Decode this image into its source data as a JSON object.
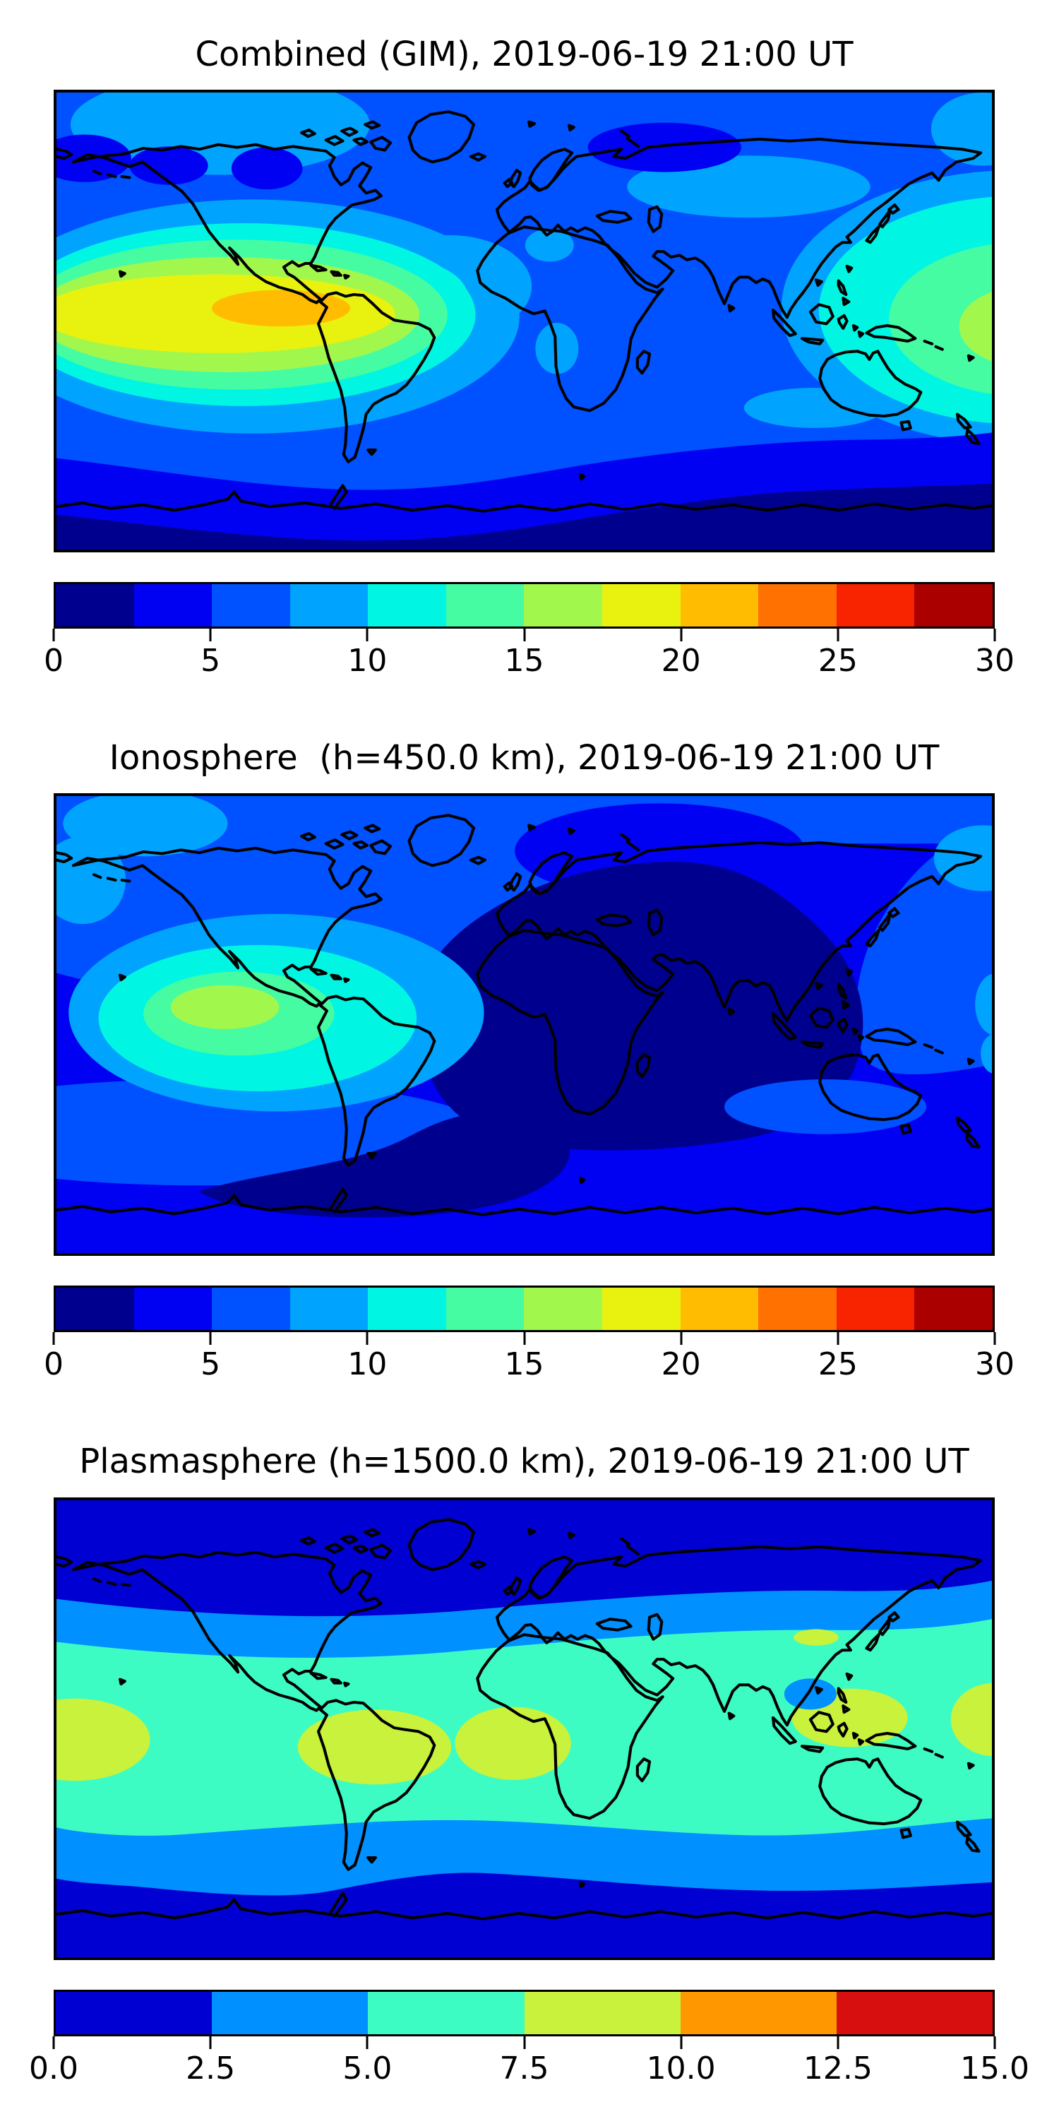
{
  "figure": {
    "kind": "Global ionosphere map figure with three stacked filled-contour world maps and horizontal colorbars",
    "background": "#ffffff",
    "coastline_color": "#000000"
  },
  "palette": {
    "jet12": [
      "#00008F",
      "#0000F2",
      "#0051FF",
      "#00A4FF",
      "#00F6E3",
      "#46FCA2",
      "#A2F74D",
      "#E9F20E",
      "#FFBC00",
      "#FF7100",
      "#F82400",
      "#AA0000"
    ],
    "jet6": [
      "#0000D2",
      "#0090FF",
      "#3DFCC3",
      "#C8F23B",
      "#FF9800",
      "#D80F0F"
    ]
  },
  "panels": [
    {
      "title": "Combined (GIM), 2019-06-19 21:00 UT",
      "colorbar": {
        "min": 0,
        "max": 30,
        "n_segments": 12,
        "colors": [
          "#00008F",
          "#0000F2",
          "#0051FF",
          "#00A4FF",
          "#00F6E3",
          "#46FCA2",
          "#A2F74D",
          "#E9F20E",
          "#FFBC00",
          "#FF7100",
          "#F82400",
          "#AA0000"
        ],
        "tick_labels": [
          "0",
          "5",
          "10",
          "15",
          "20",
          "25",
          "30"
        ]
      }
    },
    {
      "title": "Ionosphere  (h=450.0 km), 2019-06-19 21:00 UT",
      "colorbar": {
        "min": 0,
        "max": 30,
        "n_segments": 12,
        "colors": [
          "#00008F",
          "#0000F2",
          "#0051FF",
          "#00A4FF",
          "#00F6E3",
          "#46FCA2",
          "#A2F74D",
          "#E9F20E",
          "#FFBC00",
          "#FF7100",
          "#F82400",
          "#AA0000"
        ],
        "tick_labels": [
          "0",
          "5",
          "10",
          "15",
          "20",
          "25",
          "30"
        ]
      }
    },
    {
      "title": "Plasmasphere (h=1500.0 km), 2019-06-19 21:00 UT",
      "colorbar": {
        "min": 0,
        "max": 15,
        "n_segments": 6,
        "colors": [
          "#0000D2",
          "#0090FF",
          "#3DFCC3",
          "#C8F23B",
          "#FF9800",
          "#D80F0F"
        ],
        "tick_labels": [
          "0.0",
          "2.5",
          "5.0",
          "7.5",
          "10.0",
          "12.5",
          "15.0"
        ]
      }
    }
  ],
  "chart_data": [
    {
      "type": "heatmap",
      "subtype": "filled-contour world map, equirectangular, lon -180..180, lat -90..90",
      "title": "Combined (GIM), 2019-06-19 21:00 UT",
      "colormap": "jet",
      "levels": [
        0,
        2.5,
        5,
        7.5,
        10,
        12.5,
        15,
        17.5,
        20,
        22.5,
        25,
        27.5,
        30
      ],
      "colorbar_ticks": [
        0,
        5,
        10,
        15,
        20,
        25,
        30
      ],
      "features": [
        {
          "region": "eastern Pacific / Colombia-Panama (lon -120..-68, lat -2..12)",
          "value": "20-22.5 (orange core)"
        },
        {
          "region": "Pacific band west of South America to left map edge (lat ~-12..18)",
          "value": "17.5-20 (yellow)"
        },
        {
          "region": "western Pacific east of Japan to right map edge (lat ~-20..45)",
          "value": "10-17.5 (cyan-green, small yellow-green spot at edge)"
        },
        {
          "region": "Siberia (dark ellipse), NE Canada, Bering",
          "value": "2.5-5"
        },
        {
          "region": "Arctic band",
          "value": "7.5-10"
        },
        {
          "region": "southern high latitudes / Antarctica",
          "value": "0-5"
        }
      ]
    },
    {
      "type": "heatmap",
      "subtype": "filled-contour world map, equirectangular, lon -180..180, lat -90..90",
      "title": "Ionosphere  (h=450.0 km), 2019-06-19 21:00 UT",
      "colormap": "jet",
      "levels": [
        0,
        2.5,
        5,
        7.5,
        10,
        12.5,
        15,
        17.5,
        20,
        22.5,
        25,
        27.5,
        30
      ],
      "colorbar_ticks": [
        0,
        5,
        10,
        15,
        20,
        25,
        30
      ],
      "features": [
        {
          "region": "eastern Pacific west of Mexico/Central America",
          "value": "12.5-15 (yellow-green core)"
        },
        {
          "region": "surrounding eastern Pacific / Caribbean",
          "value": "7.5-12.5 (cyan / pale green)"
        },
        {
          "region": "Europe-Africa-Asia sector and south Atlantic",
          "value": "0-2.5 (darkest blue)"
        },
        {
          "region": "Arctic islands / NE Pacific / NW Pacific",
          "value": "5-10 (lighter blues)"
        },
        {
          "region": "rest of globe",
          "value": "2.5-5"
        }
      ]
    },
    {
      "type": "heatmap",
      "subtype": "filled-contour world map, equirectangular, lon -180..180, lat -90..90",
      "title": "Plasmasphere (h=1500.0 km), 2019-06-19 21:00 UT",
      "colormap": "jet",
      "levels": [
        0,
        2.5,
        5,
        7.5,
        10,
        12.5,
        15
      ],
      "colorbar_ticks": [
        0.0,
        2.5,
        5.0,
        7.5,
        10.0,
        12.5,
        15.0
      ],
      "features": [
        {
          "region": "broad equatorial band (lat ~-35..30)",
          "value": "5-7.5 (turquoise)"
        },
        {
          "region": "blobs: central Pacific (left edge), South America/Amazon, Atlantic-west Africa, New Guinea/Coral Sea, right map edge",
          "value": "7.5-10 (yellow-green)"
        },
        {
          "region": "South China Sea depression",
          "value": "2.5-5"
        },
        {
          "region": "mid-latitude transition bands",
          "value": "2.5-5"
        },
        {
          "region": "polar bands north and south",
          "value": "0-2.5"
        }
      ]
    }
  ]
}
